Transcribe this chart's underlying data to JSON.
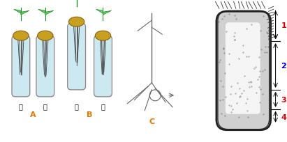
{
  "fig_width": 4.11,
  "fig_height": 2.05,
  "dpi": 100,
  "bg_color": "#ffffff",
  "label_A": "A",
  "label_B": "B",
  "label_C": "C",
  "label_jia": "甲",
  "label_yi": "乙",
  "zone_labels": [
    "1",
    "2",
    "3",
    "4"
  ],
  "zone_colors": [
    "#cc0000",
    "#0000cc",
    "#cc0000",
    "#cc0000"
  ],
  "tube_fill_color": "#cce8f0",
  "tube_seed_color": "#c8a020",
  "tube_root_color": "#444444",
  "group_label_color": "#e07800",
  "zone_line_color": "#000000",
  "arrow_color": "#000000"
}
